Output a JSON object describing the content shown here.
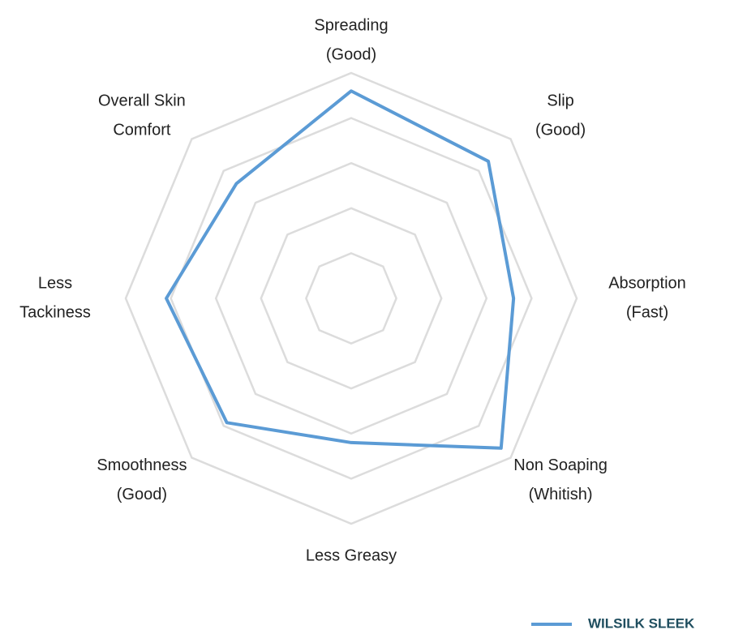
{
  "chart_data": {
    "type": "radar",
    "categories": [
      [
        "Spreading",
        "(Good)"
      ],
      [
        "Slip",
        "(Good)"
      ],
      [
        "Absorption",
        "(Fast)"
      ],
      [
        "Non Soaping",
        "(Whitish)"
      ],
      [
        "Less Greasy"
      ],
      [
        "Smoothness",
        "(Good)"
      ],
      [
        "Less",
        "Tackiness"
      ],
      [
        "Overall Skin",
        "Comfort"
      ]
    ],
    "series": [
      {
        "name": "WILSILK SLEEK",
        "color": "#5b9bd5",
        "values": [
          4.6,
          4.3,
          3.6,
          4.7,
          3.2,
          3.9,
          4.1,
          3.6
        ]
      }
    ],
    "ylim": [
      0,
      5
    ],
    "yticks": [
      0,
      1,
      2,
      3,
      4,
      5
    ],
    "grid": true,
    "legend": "bottom-right"
  }
}
